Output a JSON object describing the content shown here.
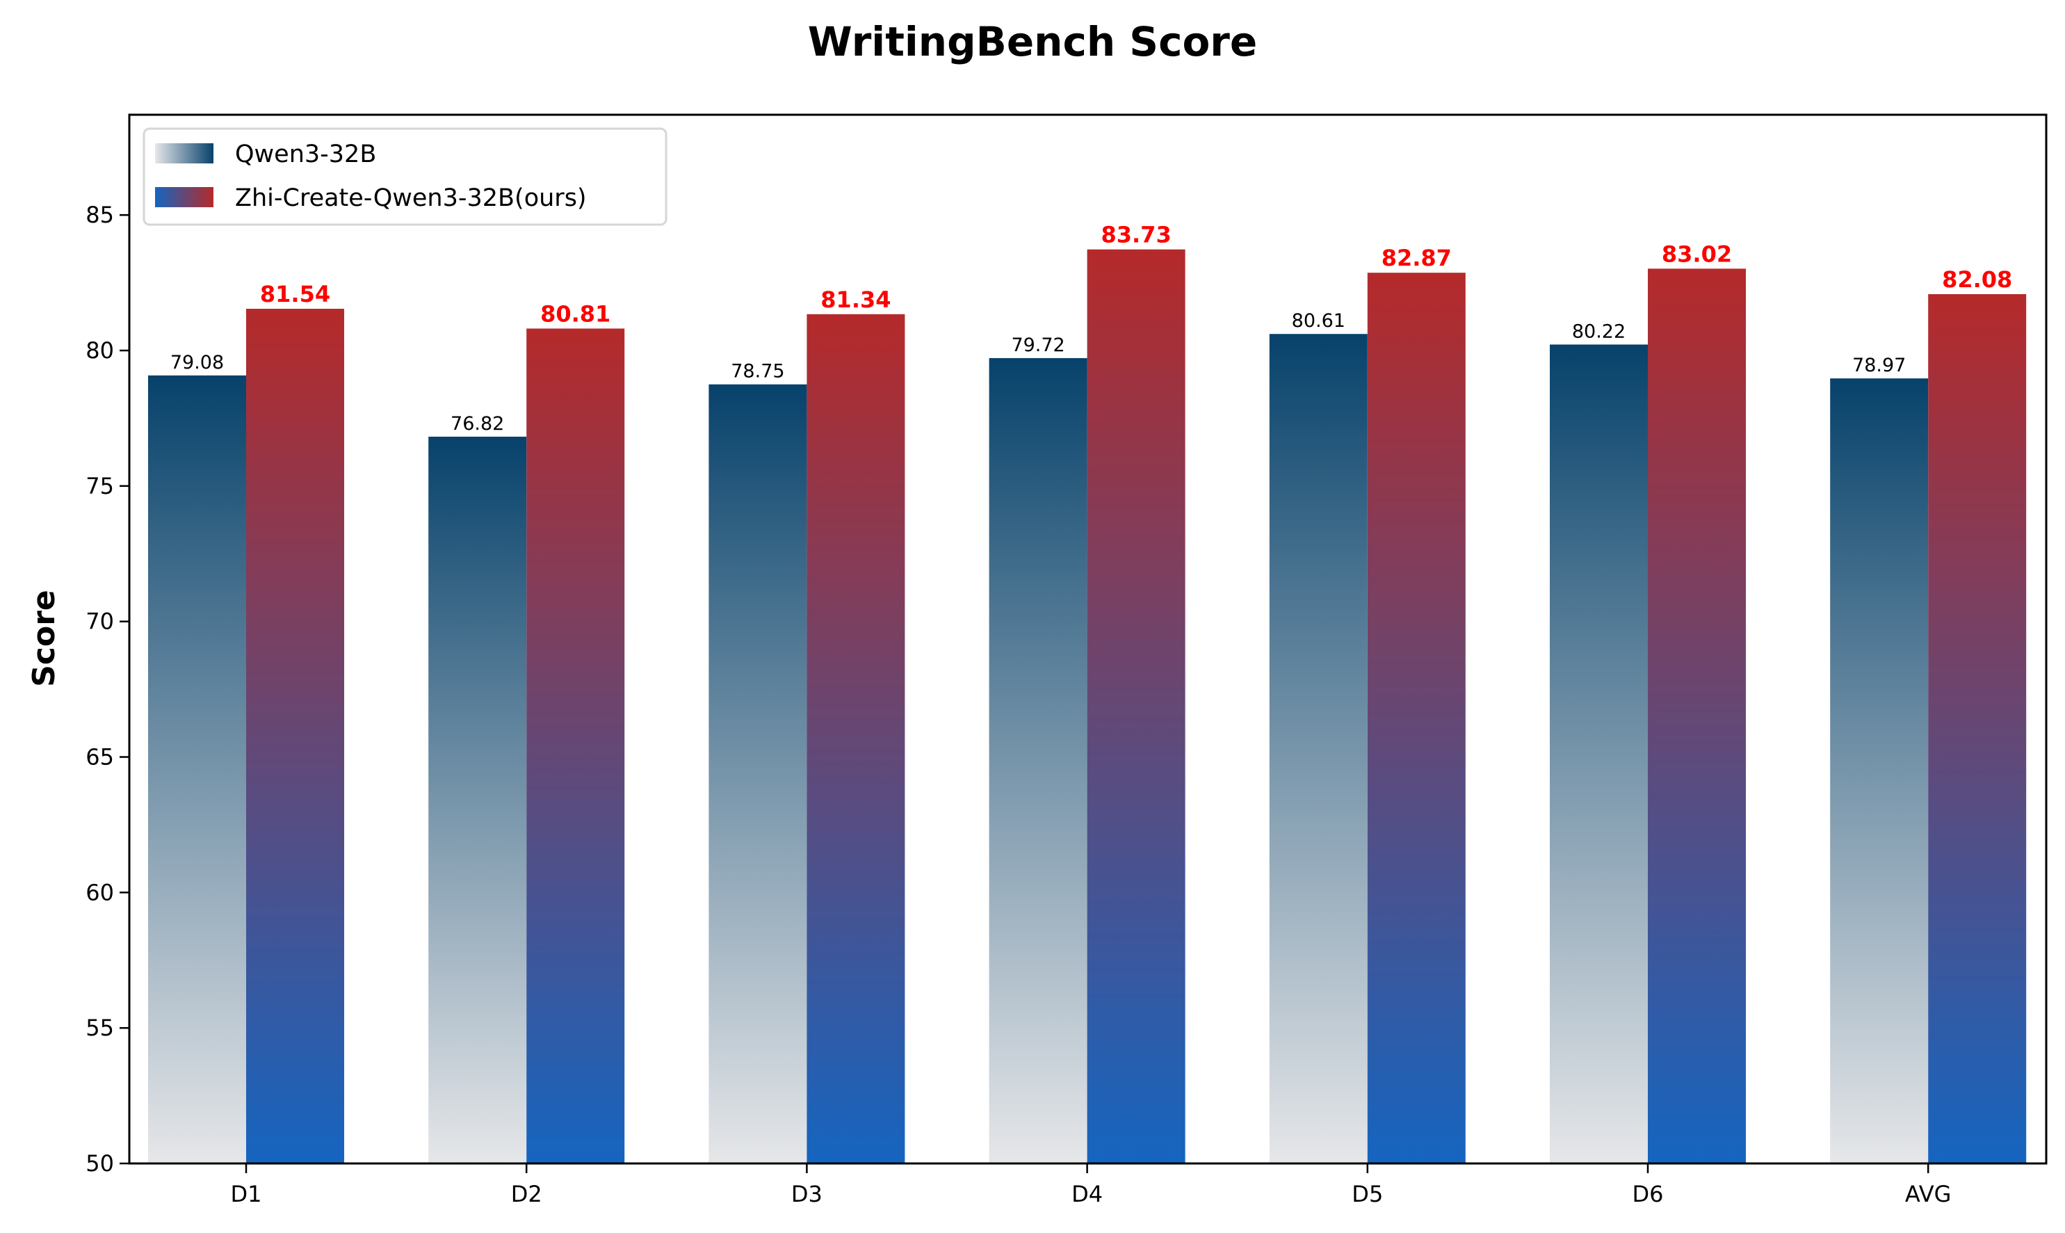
{
  "chart_data": {
    "type": "bar",
    "title": "WritingBench Score",
    "xlabel": "",
    "ylabel": "Score",
    "categories": [
      "D1",
      "D2",
      "D3",
      "D4",
      "D5",
      "D6",
      "AVG"
    ],
    "series": [
      {
        "name": "Qwen3-32B",
        "values": [
          79.08,
          76.82,
          78.75,
          79.72,
          80.61,
          80.22,
          78.97
        ],
        "value_labels": [
          "79.08",
          "76.82",
          "78.75",
          "79.72",
          "80.61",
          "80.22",
          "78.97"
        ],
        "gradient": {
          "top": "#07426b",
          "bottom": "#e6e7e9"
        },
        "label_color": "#000000"
      },
      {
        "name": "Zhi-Create-Qwen3-32B(ours)",
        "values": [
          81.54,
          80.81,
          81.34,
          83.73,
          82.87,
          83.02,
          82.08
        ],
        "value_labels": [
          "81.54",
          "80.81",
          "81.34",
          "83.73",
          "82.87",
          "83.02",
          "82.08"
        ],
        "gradient": {
          "top": "#b52a2a",
          "bottom": "#1565c0"
        },
        "label_color": "#ff0000"
      }
    ],
    "ylim": [
      50,
      88.7
    ],
    "yticks": [
      50,
      55,
      60,
      65,
      70,
      75,
      80,
      85
    ],
    "grid": false,
    "legend_position": "upper left"
  }
}
